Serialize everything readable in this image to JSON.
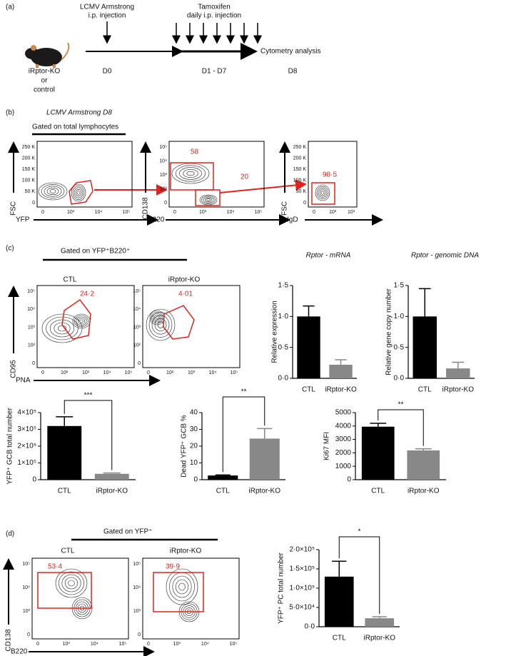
{
  "panel_a": {
    "label": "(a)",
    "injection": [
      "LCMV Armstrong",
      "i.p. injection"
    ],
    "tamoxifen": [
      "Tamoxifen",
      "daily i.p. injection"
    ],
    "analysis": "Cytometry analysis",
    "mouse": [
      "iRptor-KO",
      "or",
      "control"
    ],
    "days": [
      "D0",
      "D1 - D7",
      "D8"
    ]
  },
  "panel_b": {
    "label": "(b)",
    "subtitle": "LCMV Armstrong D8",
    "gating": "Gated on total lymphocytes",
    "plots": [
      {
        "x_label": "YFP",
        "y_label": "FSC",
        "x_ticks": [
          "0",
          "10³",
          "10⁴",
          "10⁵"
        ],
        "y_ticks": [
          "0",
          "50 K",
          "100 K",
          "150 K",
          "200 K",
          "250 K"
        ],
        "gate_labels": []
      },
      {
        "x_label": "B220",
        "y_label": "CD138",
        "x_ticks": [
          "0",
          "10³",
          "10⁴",
          "10⁵"
        ],
        "y_ticks": [
          "0",
          "10²",
          "10³",
          "10⁴",
          "10⁵"
        ],
        "gate_labels": [
          "58",
          "20"
        ]
      },
      {
        "x_label": "IgD",
        "y_label": "FSC",
        "x_ticks": [
          "0",
          "10²",
          "10³"
        ],
        "y_ticks": [
          "0",
          "50 K",
          "100 K",
          "150 K",
          "200 K",
          "250 K"
        ],
        "gate_labels": [
          "98·5"
        ]
      }
    ]
  },
  "panel_c": {
    "label": "(c)",
    "gating": "Gated on YFP⁺B220⁺",
    "groups": [
      "CTL",
      "iRptor-KO"
    ],
    "plots": [
      {
        "x_label": "PNA",
        "y_label": "CD95",
        "x_ticks": [
          "0",
          "10²",
          "10³",
          "10⁴",
          "10⁵"
        ],
        "y_ticks": [
          "0",
          "10²",
          "10³",
          "10⁴",
          "10⁵"
        ],
        "gate_labels": [
          "24·2"
        ]
      },
      {
        "x_ticks": [
          "0",
          "10²",
          "10³",
          "10⁴",
          "10⁵"
        ],
        "y_ticks": [
          "0",
          "10²",
          "10³",
          "10⁴",
          "10⁵"
        ],
        "gate_labels": [
          "4·01"
        ]
      }
    ]
  },
  "panel_d": {
    "label": "(d)",
    "gating": "Gated on YFP⁺",
    "groups": [
      "CTL",
      "iRptor-KO"
    ],
    "plots": [
      {
        "x_label": "B220",
        "y_label": "CD138",
        "x_ticks": [
          "0",
          "10³",
          "10⁴",
          "10⁵"
        ],
        "y_ticks": [
          "0",
          "10³",
          "10⁴",
          "10⁵"
        ],
        "gate_labels": [
          "53·4"
        ]
      },
      {
        "x_ticks": [
          "0",
          "10³",
          "10⁴",
          "10⁵"
        ],
        "y_ticks": [
          "0",
          "10³",
          "10⁴",
          "10⁵"
        ],
        "gate_labels": [
          "39·9"
        ]
      }
    ]
  },
  "chart_data": [
    {
      "type": "bar",
      "title": "Rptor - mRNA",
      "ylabel": "Relative expression",
      "categories": [
        "CTL",
        "iRptor-KO"
      ],
      "values": [
        1.0,
        0.22
      ],
      "errors": [
        0.17,
        0.08
      ],
      "colors": [
        "#000000",
        "#888888"
      ],
      "ylim": [
        0,
        1.5
      ],
      "yticks": [
        {
          "value": 0,
          "label": "0·0"
        },
        {
          "value": 0.5,
          "label": "0·5"
        },
        {
          "value": 1.0,
          "label": "1·0"
        },
        {
          "value": 1.5,
          "label": "1·5"
        }
      ]
    },
    {
      "type": "bar",
      "title": "Rptor - genomic DNA",
      "ylabel": "Relative gene copy number",
      "categories": [
        "CTL",
        "iRptor-KO"
      ],
      "values": [
        1.0,
        0.16
      ],
      "errors": [
        0.45,
        0.1
      ],
      "colors": [
        "#000000",
        "#888888"
      ],
      "ylim": [
        0,
        1.5
      ],
      "yticks": [
        {
          "value": 0,
          "label": "0·0"
        },
        {
          "value": 0.5,
          "label": "0·5"
        },
        {
          "value": 1.0,
          "label": "1·0"
        },
        {
          "value": 1.5,
          "label": "1·5"
        }
      ]
    },
    {
      "type": "bar",
      "ylabel": "YFP⁺ GCB total number",
      "categories": [
        "CTL",
        "iRptor-KO"
      ],
      "values": [
        320000,
        35000
      ],
      "errors": [
        55000,
        5000
      ],
      "colors": [
        "#000000",
        "#888888"
      ],
      "significance": "***",
      "ylim": [
        0,
        400000
      ],
      "yticks": [
        0,
        {
          "value": 100000,
          "label": "1×10⁵"
        },
        {
          "value": 200000,
          "label": "2×10⁵"
        },
        {
          "value": 300000,
          "label": "3×10⁵"
        },
        {
          "value": 400000,
          "label": "4×10⁵"
        }
      ]
    },
    {
      "type": "bar",
      "ylabel": "Dead YFP⁺ GCB %",
      "categories": [
        "CTL",
        "iRptor-KO"
      ],
      "values": [
        2.5,
        24.5
      ],
      "errors": [
        0.3,
        6
      ],
      "colors": [
        "#000000",
        "#888888"
      ],
      "significance": "**",
      "ylim": [
        0,
        40
      ],
      "yticks": [
        0,
        10,
        20,
        30,
        40
      ]
    },
    {
      "type": "bar",
      "ylabel": "Ki67 MFI",
      "categories": [
        "CTL",
        "iRptor-KO"
      ],
      "values": [
        3950,
        2180
      ],
      "errors": [
        250,
        120
      ],
      "colors": [
        "#000000",
        "#888888"
      ],
      "significance": "**",
      "ylim": [
        0,
        5000
      ],
      "yticks": [
        0,
        1000,
        2000,
        3000,
        4000,
        5000
      ]
    },
    {
      "type": "bar",
      "ylabel": "YFP⁺ PC total number",
      "categories": [
        "CTL",
        "iRptor-KO"
      ],
      "values": [
        130000,
        22000
      ],
      "errors": [
        40000,
        4000
      ],
      "colors": [
        "#000000",
        "#888888"
      ],
      "significance": "*",
      "ylim": [
        0,
        200000
      ],
      "yticks": [
        {
          "value": 0,
          "label": "0·0"
        },
        {
          "value": 50000,
          "label": "5·0×10⁴"
        },
        {
          "value": 100000,
          "label": "1·0×10⁵"
        },
        {
          "value": 150000,
          "label": "1·5×10⁵"
        },
        {
          "value": 200000,
          "label": "2·0×10⁵"
        }
      ]
    }
  ]
}
